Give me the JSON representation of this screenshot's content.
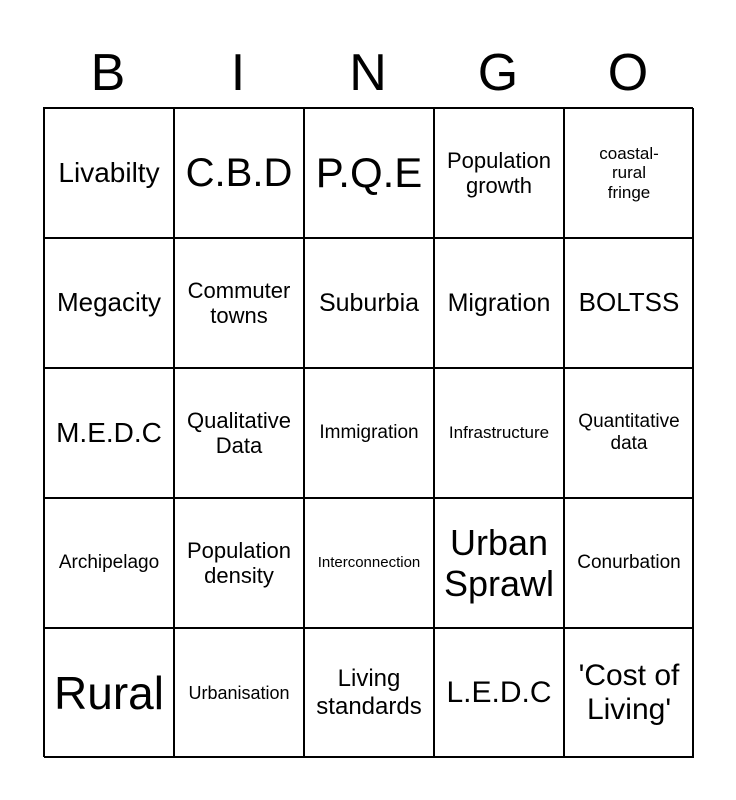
{
  "header": [
    "B",
    "I",
    "N",
    "G",
    "O"
  ],
  "cells": [
    "Livabilty",
    "C.B.D",
    "P.Q.E",
    "Population growth",
    "coastal-rural fringe",
    "Megacity",
    "Commuter towns",
    "Suburbia",
    "Migration",
    "BOLTSS",
    "M.E.D.C",
    "Qualitative Data",
    "Immigration",
    "Infrastructure",
    "Quantitative data",
    "Archipelago",
    "Population density",
    "Interconnection",
    "Urban Sprawl",
    "Conurbation",
    "Rural",
    "Urbanisation",
    "Living standards",
    "L.E.D.C",
    "'Cost of Living'"
  ]
}
